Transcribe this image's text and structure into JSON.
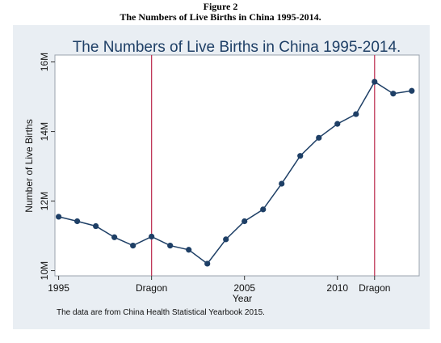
{
  "figure": {
    "label": "Figure 2",
    "title": "The Numbers of Live Births in China 1995-2014."
  },
  "chart_data": {
    "type": "line",
    "title": "The Numbers of Live Births in China 1995-2014.",
    "xlabel": "Year",
    "ylabel": "Number of Live Births",
    "x": [
      1995,
      1996,
      1997,
      1998,
      1999,
      2000,
      2001,
      2002,
      2003,
      2004,
      2005,
      2006,
      2007,
      2008,
      2009,
      2010,
      2011,
      2012,
      2013,
      2014
    ],
    "series": [
      {
        "values": [
          11.55,
          11.42,
          11.28,
          10.96,
          10.72,
          10.98,
          10.72,
          10.6,
          10.2,
          10.9,
          11.42,
          11.76,
          12.5,
          13.3,
          13.82,
          14.22,
          14.5,
          15.43,
          15.09,
          15.17
        ]
      }
    ],
    "xlim": [
      1994.8,
      2014.4
    ],
    "ylim": [
      9.85,
      16.2
    ],
    "xticks": [
      {
        "value": 1995,
        "label": "1995"
      },
      {
        "value": 2000,
        "label": "Dragon"
      },
      {
        "value": 2005,
        "label": "2005"
      },
      {
        "value": 2010,
        "label": "2010"
      },
      {
        "value": 2012,
        "label": "Dragon"
      }
    ],
    "yticks": [
      {
        "value": 10,
        "label": "10M"
      },
      {
        "value": 12,
        "label": "12M"
      },
      {
        "value": 14,
        "label": "14M"
      },
      {
        "value": 16,
        "label": "16M"
      }
    ],
    "reference_lines": [
      2000,
      2012
    ],
    "grid": false,
    "note": "The data are from China Health Statistical Yearbook 2015.",
    "colors": {
      "line": "#1e3f66",
      "reference": "#c0395a",
      "panel": "#e9eef3",
      "plot": "#ffffff"
    }
  }
}
